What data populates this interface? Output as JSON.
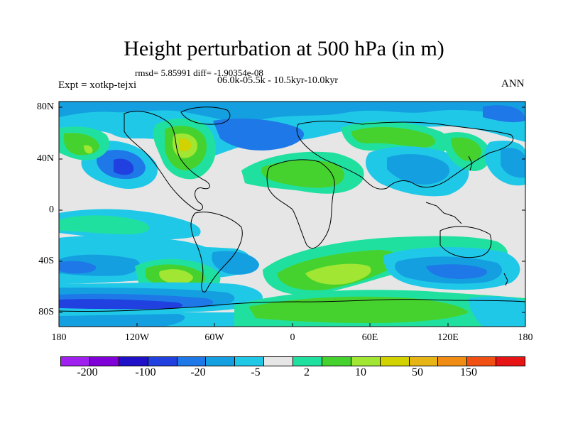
{
  "title": "Height perturbation at 500 hPa (in m)",
  "stats": "rmsd= 5.85991 diff= -1.90354e-08",
  "period": "06.0k-05.5k - 10.5kyr-10.0kyr",
  "experiment": "Expt = xotkp-tejxi",
  "season": "ANN",
  "lat_labels": [
    "80N",
    "40N",
    "0",
    "40S",
    "80S"
  ],
  "lon_labels": [
    "180",
    "120W",
    "60W",
    "0",
    "60E",
    "120E",
    "180"
  ],
  "legend": {
    "colors": [
      "#a020f0",
      "#8000d8",
      "#2010c8",
      "#2040e0",
      "#1e78e8",
      "#14a0e0",
      "#20c8e8",
      "#e6e6e6",
      "#20e0a0",
      "#46d22e",
      "#a0e632",
      "#d2d200",
      "#e6b414",
      "#f08c14",
      "#f05014",
      "#e61414"
    ],
    "labels": [
      "-200",
      "-100",
      "-20",
      "-5",
      "2",
      "10",
      "50",
      "150"
    ]
  },
  "map_colors": {
    "background": "#e6e6e6",
    "neg_light": "#20c8e8",
    "neg_mid": "#14a0e0",
    "neg_dark": "#1e78e8",
    "neg_deep": "#2040e0",
    "pos_light": "#20e0a0",
    "pos_mid": "#46d22e",
    "pos_high": "#a0e632",
    "pos_peak": "#d2d200"
  }
}
